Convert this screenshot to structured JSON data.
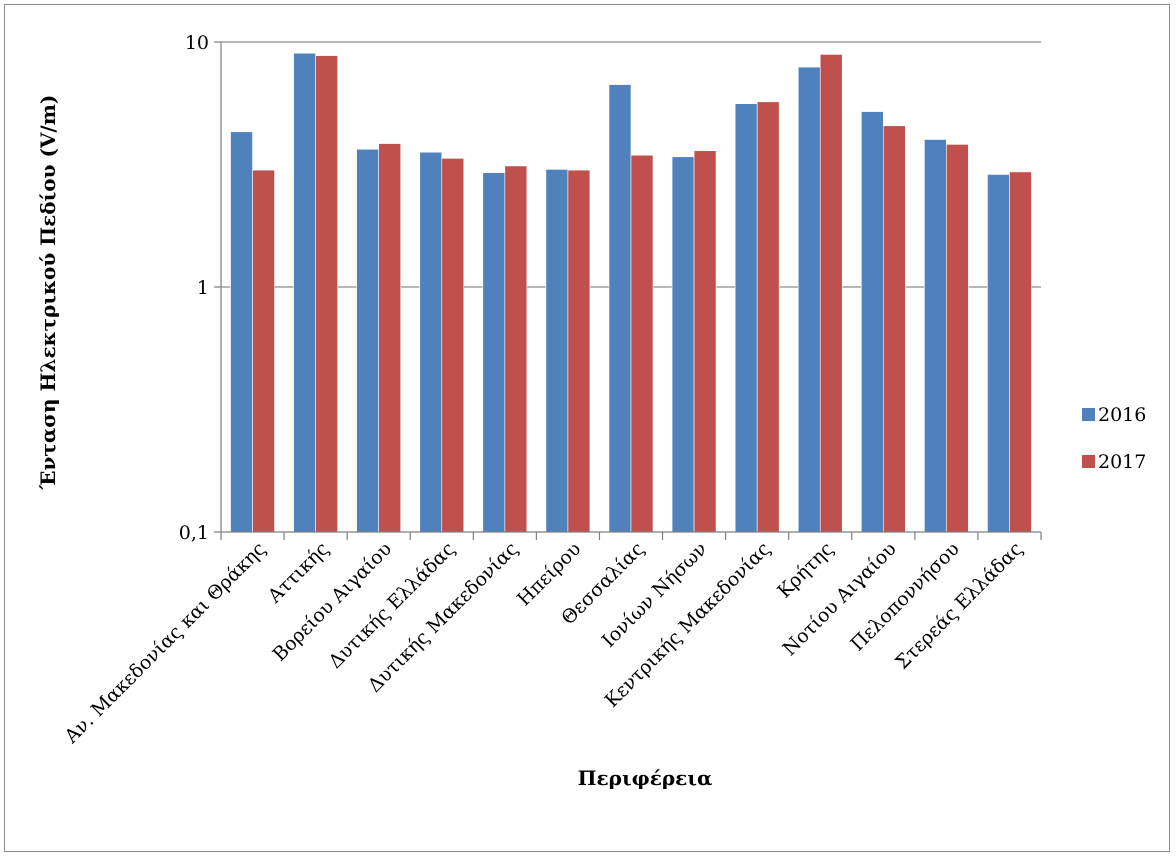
{
  "chart_data": {
    "type": "bar",
    "title": "",
    "xlabel": "Περιφέρεια",
    "ylabel": "Ένταση Ηλεκτρικού Πεδίου (V/m)",
    "yscale": "log",
    "ylim": [
      0.1,
      10
    ],
    "yticks": [
      {
        "value": 0.1,
        "label": "0,1"
      },
      {
        "value": 1,
        "label": "1"
      },
      {
        "value": 10,
        "label": "10"
      }
    ],
    "grid": "horizontal",
    "legend_position": "right",
    "categories": [
      "Αν. Μακεδονίας και Θράκης",
      "Αττικής",
      "Βορείου Αιγαίου",
      "Δυτικής Ελλάδας",
      "Δυτικής Μακεδονίας",
      "Ηπείρου",
      "Θεσσαλίας",
      "Ιονίων Νήσων",
      "Κεντρικής Μακεδονίας",
      "Κρήτης",
      "Νοτίου Αιγαίου",
      "Πελοποννήσου",
      "Στερεάς Ελλάδας"
    ],
    "series": [
      {
        "name": "2016",
        "color": "#4f81bd",
        "values": [
          4.3,
          9.0,
          3.65,
          3.55,
          2.93,
          3.02,
          6.7,
          3.4,
          5.6,
          7.9,
          5.2,
          4.0,
          2.88
        ]
      },
      {
        "name": "2017",
        "color": "#c0504d",
        "values": [
          3.0,
          8.8,
          3.85,
          3.35,
          3.12,
          3.0,
          3.45,
          3.6,
          5.7,
          8.9,
          4.55,
          3.82,
          2.95
        ]
      }
    ]
  }
}
